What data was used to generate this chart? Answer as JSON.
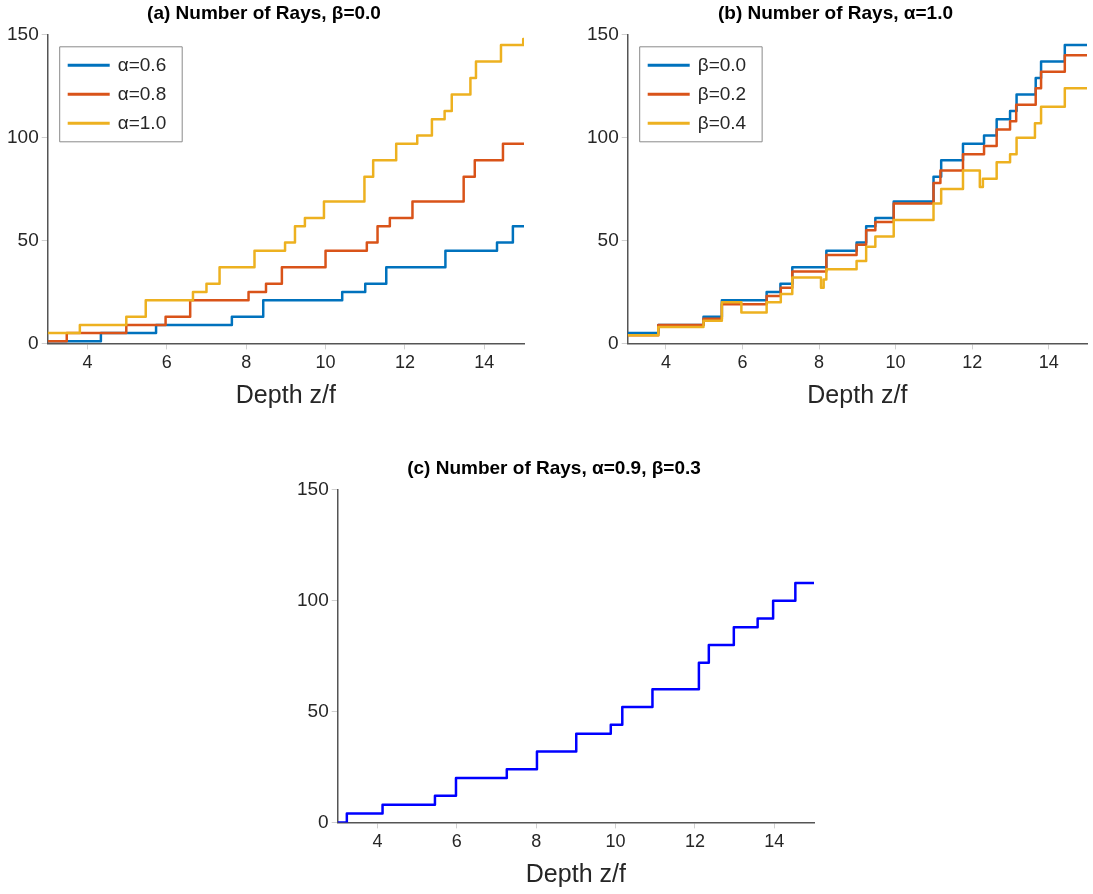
{
  "chart_data": [
    {
      "type": "step",
      "title": "(a) Number of Rays, β=0.0",
      "xlabel": "Depth z/f",
      "xlim": [
        3,
        15
      ],
      "xticks": [
        4,
        6,
        8,
        10,
        12,
        14
      ],
      "ylim": [
        0,
        150
      ],
      "yticks": [
        0,
        50,
        100,
        150
      ],
      "grid": false,
      "legend": "top left",
      "series": [
        {
          "name": "α=0.6",
          "color": "#0072bd",
          "x": [
            3,
            4.34,
            5.73,
            7.64,
            8.43,
            10.42,
            11.0,
            11.53,
            13.02,
            14.32,
            14.72,
            15
          ],
          "values": [
            1,
            5,
            9,
            13,
            21,
            25,
            29,
            37,
            45,
            49,
            57,
            57
          ]
        },
        {
          "name": "α=0.8",
          "color": "#d95319",
          "x": [
            3,
            3.48,
            4.98,
            5.97,
            6.59,
            8.06,
            8.5,
            8.9,
            10.0,
            11.04,
            11.31,
            11.62,
            12.19,
            13.48,
            13.76,
            14.47,
            15
          ],
          "values": [
            1,
            5,
            9,
            13,
            21,
            25,
            29,
            37,
            45,
            49,
            57,
            61,
            69,
            81,
            89,
            97,
            97
          ]
        },
        {
          "name": "α=1.0",
          "color": "#edb120",
          "x": [
            3,
            3.81,
            4.98,
            5.47,
            6.66,
            7.0,
            7.33,
            8.21,
            8.98,
            9.23,
            9.48,
            9.96,
            10.98,
            11.2,
            11.78,
            12.31,
            12.68,
            13.0,
            13.18,
            13.65,
            13.79,
            14.42,
            14.98,
            15
          ],
          "values": [
            5,
            9,
            13,
            21,
            25,
            29,
            37,
            45,
            49,
            57,
            61,
            69,
            81,
            89,
            97,
            101,
            109,
            113,
            121,
            129,
            137,
            145,
            148,
            148
          ]
        }
      ]
    },
    {
      "type": "step",
      "title": "(b) Number of Rays, α=1.0",
      "xlabel": "Depth z/f",
      "xlim": [
        3,
        15
      ],
      "xticks": [
        4,
        6,
        8,
        10,
        12,
        14
      ],
      "ylim": [
        0,
        150
      ],
      "yticks": [
        0,
        50,
        100,
        150
      ],
      "grid": false,
      "legend": "top left",
      "series": [
        {
          "name": "β=0.0",
          "color": "#0072bd",
          "x": [
            3,
            3.8,
            4.98,
            5.46,
            6.63,
            6.99,
            7.3,
            8.19,
            8.98,
            9.23,
            9.47,
            9.95,
            10.99,
            11.19,
            11.76,
            12.31,
            12.64,
            12.99,
            13.16,
            13.66,
            13.8,
            14.42,
            15
          ],
          "values": [
            5,
            9,
            13,
            21,
            25,
            29,
            37,
            45,
            49,
            57,
            61,
            69,
            81,
            89,
            97,
            101,
            109,
            113,
            121,
            129,
            137,
            145,
            145
          ]
        },
        {
          "name": "β=0.2",
          "color": "#d95319",
          "x": [
            3,
            3.8,
            4.98,
            5.46,
            6.63,
            7.0,
            7.3,
            8.19,
            8.98,
            9.23,
            9.47,
            9.95,
            10.99,
            11.17,
            11.76,
            12.31,
            12.64,
            12.99,
            13.15,
            13.66,
            13.8,
            14.42,
            15
          ],
          "values": [
            4,
            9,
            12,
            19,
            23,
            27,
            35,
            43,
            48,
            55,
            59,
            68,
            78,
            84,
            92,
            96,
            104,
            108,
            116,
            124,
            132,
            140,
            140
          ]
        },
        {
          "name": "β=0.4",
          "color": "#edb120",
          "x": [
            3,
            3.8,
            4.98,
            5.46,
            5.97,
            6.63,
            7.0,
            7.3,
            8.05,
            8.12,
            8.19,
            8.98,
            9.23,
            9.47,
            9.95,
            10.99,
            11.19,
            11.76,
            12.2,
            12.28,
            12.35,
            12.64,
            12.99,
            13.16,
            13.64,
            13.8,
            14.42,
            15
          ],
          "values": [
            4,
            8,
            11,
            20,
            15,
            20,
            24,
            32,
            27,
            31,
            36,
            40,
            47,
            52,
            60,
            68,
            75,
            84,
            76,
            80,
            80,
            88,
            92,
            100,
            107,
            115,
            124,
            124
          ]
        }
      ]
    },
    {
      "type": "step",
      "title": "(c) Number of Rays, α=0.9, β=0.3",
      "xlabel": "Depth z/f",
      "xlim": [
        3,
        15
      ],
      "xticks": [
        4,
        6,
        8,
        10,
        12,
        14
      ],
      "ylim": [
        0,
        150
      ],
      "yticks": [
        0,
        50,
        100,
        150
      ],
      "grid": false,
      "legend": false,
      "series": [
        {
          "color": "#0000ff",
          "x": [
            3,
            3.23,
            4.13,
            5.45,
            5.98,
            7.26,
            8.02,
            9.01,
            9.88,
            10.17,
            10.93,
            12.1,
            12.35,
            12.98,
            13.58,
            13.97,
            14.53,
            15
          ],
          "values": [
            0,
            4,
            8,
            12,
            20,
            24,
            32,
            40,
            44,
            52,
            60,
            72,
            80,
            88,
            92,
            100,
            108,
            108
          ]
        }
      ]
    }
  ]
}
